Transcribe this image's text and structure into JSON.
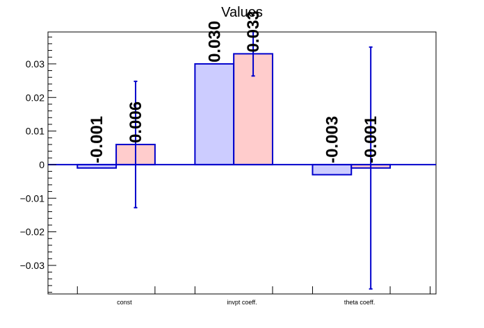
{
  "chart_data": {
    "type": "bar",
    "title": "Values",
    "xlabel": "",
    "ylabel": "",
    "categories": [
      "const",
      "invpt coeff.",
      "theta coeff."
    ],
    "ylim": [
      -0.0385,
      0.0395
    ],
    "yticks": [
      -0.03,
      -0.02,
      -0.01,
      0,
      0.01,
      0.02,
      0.03
    ],
    "ytick_labels": [
      "−0.03",
      "−0.02",
      "−0.01",
      "0",
      "0.01",
      "0.02",
      "0.03"
    ],
    "grid": false,
    "series": [
      {
        "values": [
          -0.001,
          0.03,
          -0.003
        ],
        "labels": [
          "-0.001",
          "0.030",
          "-0.003"
        ],
        "errors": [
          0,
          0,
          0
        ],
        "fill": "#ccccff",
        "stroke": "#0000cc"
      },
      {
        "values": [
          0.006,
          0.033,
          -0.001
        ],
        "labels": [
          "0.006",
          "0.033",
          "-0.001"
        ],
        "errors": [
          0.0188,
          0.0066,
          0.036
        ],
        "fill": "#ffcccc",
        "stroke": "#0000cc"
      }
    ]
  }
}
